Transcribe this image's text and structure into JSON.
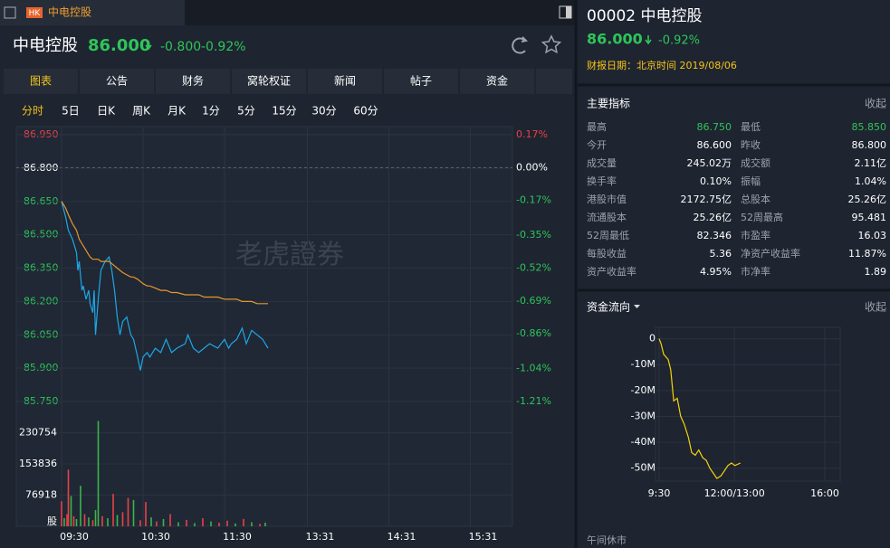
{
  "tab": {
    "badge": "HK",
    "title": "中电控股"
  },
  "quote": {
    "name": "中电控股",
    "price": "86.000",
    "change": "-0.800",
    "change_pct": "-0.92%"
  },
  "tabs": [
    "图表",
    "公告",
    "财务",
    "窝轮权证",
    "新闻",
    "帖子",
    "资金"
  ],
  "periods": [
    "分时",
    "5日",
    "日K",
    "周K",
    "月K",
    "1分",
    "5分",
    "15分",
    "30分",
    "60分"
  ],
  "watermark": "老虎證券",
  "chart_data": [
    {
      "type": "line",
      "grid": true,
      "x": [
        0,
        3,
        5,
        8,
        11,
        12,
        13,
        15,
        16,
        18,
        20,
        21,
        23,
        24,
        25,
        27,
        29,
        32,
        35,
        37,
        39,
        41,
        43,
        45,
        48,
        51,
        53,
        56,
        58,
        60,
        63,
        65,
        69,
        73,
        77,
        81,
        85,
        91,
        93,
        97,
        101,
        105,
        109,
        115,
        120,
        123,
        125,
        129,
        133,
        136,
        140,
        144,
        148,
        152
      ],
      "xlim": [
        0,
        331
      ],
      "xticks": [
        {
          "value": 0,
          "label": "09:30"
        },
        {
          "value": 60,
          "label": "10:30"
        },
        {
          "value": 120,
          "label": "11:30"
        },
        {
          "value": 181,
          "label": "13:31"
        },
        {
          "value": 241,
          "label": "14:31"
        },
        {
          "value": 301,
          "label": "15:31"
        }
      ],
      "ylim": [
        85.75,
        86.95
      ],
      "yticks": [
        {
          "value": 86.95,
          "label": "86.950"
        },
        {
          "value": 86.8,
          "label": "86.800"
        },
        {
          "value": 86.65,
          "label": "86.650"
        },
        {
          "value": 86.5,
          "label": "86.500"
        },
        {
          "value": 86.35,
          "label": "86.350"
        },
        {
          "value": 86.2,
          "label": "86.200"
        },
        {
          "value": 86.05,
          "label": "86.050"
        },
        {
          "value": 85.9,
          "label": "85.900"
        },
        {
          "value": 85.75,
          "label": "85.750"
        }
      ],
      "y2lim": [
        -1.21,
        0.17
      ],
      "y2ticks": [
        {
          "value": 0.17,
          "label": "0.17%"
        },
        {
          "value": 0,
          "label": "0.00%"
        },
        {
          "value": -0.17,
          "label": "-0.17%"
        },
        {
          "value": -0.35,
          "label": "-0.35%"
        },
        {
          "value": -0.52,
          "label": "-0.52%"
        },
        {
          "value": -0.69,
          "label": "-0.69%"
        },
        {
          "value": -0.86,
          "label": "-0.86%"
        },
        {
          "value": -1.04,
          "label": "-1.04%"
        },
        {
          "value": -1.21,
          "label": "-1.21%"
        }
      ],
      "series": [
        {
          "color": "#1ea7e8",
          "values": [
            86.65,
            86.58,
            86.52,
            86.48,
            86.42,
            86.34,
            86.38,
            86.25,
            86.27,
            86.21,
            86.25,
            86.19,
            86.15,
            86.25,
            86.05,
            86.21,
            86.34,
            86.38,
            86.4,
            86.34,
            86.25,
            86.13,
            86.05,
            86.11,
            86.13,
            86.05,
            86.03,
            85.95,
            85.89,
            85.95,
            85.97,
            85.95,
            85.99,
            85.97,
            86.03,
            85.97,
            85.99,
            86.01,
            86.05,
            85.99,
            85.97,
            85.99,
            86.01,
            85.99,
            86.03,
            85.99,
            86.01,
            86.03,
            86.08,
            86.01,
            86.07,
            86.05,
            86.03,
            85.99
          ]
        },
        {
          "color": "#e8962e",
          "values": [
            86.65,
            86.62,
            86.59,
            86.55,
            86.52,
            86.5,
            86.48,
            86.46,
            86.45,
            86.43,
            86.41,
            86.4,
            86.39,
            86.39,
            86.39,
            86.39,
            86.38,
            86.38,
            86.38,
            86.37,
            86.36,
            86.35,
            86.34,
            86.33,
            86.32,
            86.31,
            86.31,
            86.3,
            86.29,
            86.28,
            86.27,
            86.27,
            86.26,
            86.25,
            86.25,
            86.24,
            86.24,
            86.23,
            86.23,
            86.23,
            86.23,
            86.22,
            86.22,
            86.22,
            86.21,
            86.21,
            86.21,
            86.21,
            86.2,
            86.2,
            86.2,
            86.19,
            86.19,
            86.19
          ]
        }
      ]
    },
    {
      "type": "bar",
      "x": [
        0,
        2,
        4,
        5,
        7,
        9,
        11,
        14,
        17,
        20,
        23,
        25,
        27,
        30,
        34,
        38,
        41,
        45,
        49,
        53,
        58,
        62,
        66,
        70,
        75,
        80,
        86,
        92,
        98,
        104,
        110,
        116,
        122,
        128,
        134,
        140,
        146,
        150
      ],
      "xlim": [
        0,
        331
      ],
      "ylim": [
        0,
        268000
      ],
      "yticks": [
        230754,
        153836,
        76918,
        {
          "value": 0,
          "label": "股"
        }
      ],
      "values": [
        62000,
        20000,
        30000,
        140000,
        75000,
        25000,
        18000,
        100000,
        30000,
        22000,
        15000,
        40000,
        260000,
        25000,
        20000,
        80000,
        28000,
        35000,
        70000,
        65000,
        15000,
        60000,
        22000,
        12000,
        18000,
        30000,
        10000,
        16000,
        8000,
        20000,
        12000,
        9000,
        14000,
        7000,
        18000,
        10000,
        6000,
        9000
      ],
      "colors": [
        "#e8414a",
        "#3bb54a",
        "#e8414a",
        "#e8414a",
        "#3bb54a",
        "#e8414a",
        "#3bb54a",
        "#3bb54a",
        "#e8414a",
        "#3bb54a",
        "#e8414a",
        "#3bb54a",
        "#3bb54a",
        "#e8414a",
        "#3bb54a",
        "#e8414a",
        "#3bb54a",
        "#e8414a",
        "#e8414a",
        "#3bb54a",
        "#e8414a",
        "#e8414a",
        "#3bb54a",
        "#e8414a",
        "#3bb54a",
        "#e8414a",
        "#3bb54a",
        "#e8414a",
        "#3bb54a",
        "#e8414a",
        "#3bb54a",
        "#e8414a",
        "#e8414a",
        "#3bb54a",
        "#e8414a",
        "#3bb54a",
        "#e8414a",
        "#3bb54a"
      ]
    },
    {
      "type": "line",
      "grid": true,
      "color": "#f5d20a",
      "x": [
        0,
        4,
        9,
        18,
        23,
        29,
        36,
        43,
        50,
        58,
        65,
        72,
        79,
        87,
        94,
        101,
        108,
        115,
        123,
        130,
        137,
        144,
        151,
        162
      ],
      "xlim": [
        0,
        330
      ],
      "xticks": [
        {
          "value": 0,
          "label": "9:30"
        },
        {
          "value": 150,
          "label": "12:00/13:00"
        },
        {
          "value": 330,
          "label": "16:00"
        }
      ],
      "ylim": [
        -55000000,
        3000000
      ],
      "yticks": [
        0,
        {
          "value": -10000000,
          "label": "-10M"
        },
        {
          "value": -20000000,
          "label": "-20M"
        },
        {
          "value": -30000000,
          "label": "-30M"
        },
        {
          "value": -40000000,
          "label": "-40M"
        },
        {
          "value": -50000000,
          "label": "-50M"
        }
      ],
      "values": [
        0,
        -2000000,
        -6000000,
        -8000000,
        -12000000,
        -24000000,
        -23000000,
        -30000000,
        -33000000,
        -38000000,
        -44000000,
        -45000000,
        -43000000,
        -46000000,
        -47000000,
        -50000000,
        -52000000,
        -54000000,
        -53000000,
        -51000000,
        -49000000,
        -48000000,
        -49000000,
        -48000000
      ]
    }
  ],
  "side": {
    "title": "00002 中电控股",
    "price": "86.000",
    "change_pct": "-0.92%",
    "report_date": "财报日期：北京时间 2019/08/06"
  },
  "metrics": {
    "title": "主要指标",
    "toggle": "收起",
    "rows": [
      [
        "最高",
        "86.750",
        "最低",
        "85.850"
      ],
      [
        "今开",
        "86.600",
        "昨收",
        "86.800"
      ],
      [
        "成交量",
        "245.02万",
        "成交额",
        "2.11亿"
      ],
      [
        "换手率",
        "0.10%",
        "振幅",
        "1.04%"
      ],
      [
        "港股市值",
        "2172.75亿",
        "总股本",
        "25.26亿"
      ],
      [
        "流通股本",
        "25.26亿",
        "52周最高",
        "95.481"
      ],
      [
        "52周最低",
        "82.346",
        "市盈率",
        "16.03"
      ],
      [
        "每股收益",
        "5.36",
        "净资产收益率",
        "11.87%"
      ],
      [
        "资产收益率",
        "4.95%",
        "市净率",
        "1.89"
      ]
    ]
  },
  "fund_flow": {
    "title": "资金流向",
    "toggle": "收起",
    "status": "午间休市"
  }
}
